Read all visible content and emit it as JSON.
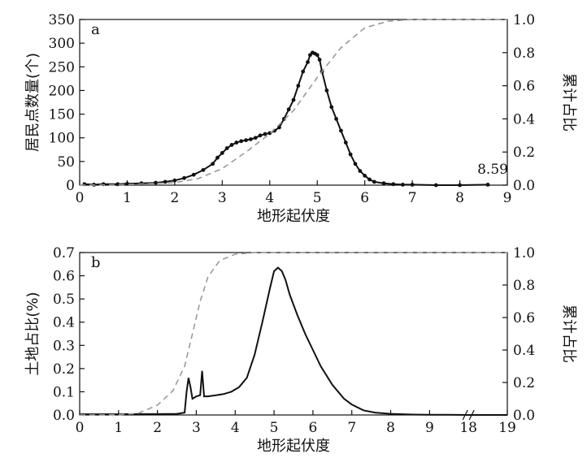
{
  "chart_data": [
    {
      "type": "scatter",
      "panel_label": "a",
      "xlabel": "地形起伏度",
      "ylabel": "居民点数量(个)",
      "y2label": "累计占比",
      "xlim": [
        0,
        9
      ],
      "ylim": [
        0,
        350
      ],
      "y2lim": [
        0,
        1.0
      ],
      "x_ticks": [
        "0",
        "1",
        "2",
        "3",
        "4",
        "5",
        "6",
        "7",
        "8",
        "9"
      ],
      "y_ticks": [
        "0",
        "50",
        "100",
        "150",
        "200",
        "250",
        "300",
        "350"
      ],
      "y2_ticks": [
        "0.0",
        "0.2",
        "0.4",
        "0.6",
        "0.8",
        "1.0"
      ],
      "annotation": "8.59",
      "series": [
        {
          "style": "black dots with line",
          "axis": "left",
          "x": [
            0.1,
            0.3,
            0.5,
            0.8,
            1.0,
            1.3,
            1.6,
            1.8,
            2.0,
            2.2,
            2.4,
            2.6,
            2.8,
            2.9,
            3.0,
            3.1,
            3.2,
            3.3,
            3.4,
            3.5,
            3.6,
            3.7,
            3.8,
            3.9,
            4.0,
            4.1,
            4.2,
            4.3,
            4.4,
            4.5,
            4.6,
            4.7,
            4.8,
            4.85,
            4.9,
            4.95,
            5.0,
            5.05,
            5.1,
            5.2,
            5.3,
            5.4,
            5.5,
            5.6,
            5.7,
            5.8,
            5.9,
            6.0,
            6.1,
            6.2,
            6.4,
            6.6,
            6.8,
            7.0,
            7.5,
            8.0,
            8.59
          ],
          "y": [
            2,
            1,
            2,
            2,
            3,
            4,
            5,
            7,
            10,
            15,
            22,
            32,
            45,
            58,
            68,
            78,
            85,
            90,
            93,
            95,
            97,
            100,
            105,
            108,
            110,
            115,
            122,
            140,
            160,
            180,
            210,
            240,
            260,
            275,
            280,
            278,
            275,
            265,
            240,
            200,
            165,
            140,
            115,
            90,
            65,
            45,
            30,
            20,
            12,
            7,
            4,
            2,
            1,
            1,
            0,
            0,
            1
          ]
        },
        {
          "style": "dashed gray",
          "axis": "right",
          "x": [
            0,
            1,
            2,
            2.5,
            3,
            3.5,
            4,
            4.5,
            5,
            5.5,
            6,
            6.5,
            7,
            9
          ],
          "y": [
            0,
            0.003,
            0.015,
            0.04,
            0.1,
            0.2,
            0.31,
            0.45,
            0.65,
            0.83,
            0.95,
            0.99,
            1.0,
            1.0
          ]
        }
      ]
    },
    {
      "type": "line",
      "panel_label": "b",
      "xlabel": "地形起伏度",
      "ylabel": "土地占比(%)",
      "y2label": "累计占比",
      "xlim": [
        0,
        19
      ],
      "x_break": [
        10,
        18
      ],
      "ylim": [
        0,
        0.7
      ],
      "y2lim": [
        0,
        1.0
      ],
      "x_ticks": [
        "0",
        "1",
        "2",
        "3",
        "4",
        "5",
        "6",
        "7",
        "8",
        "9",
        "18",
        "19"
      ],
      "y_ticks": [
        "0.0",
        "0.1",
        "0.2",
        "0.3",
        "0.4",
        "0.5",
        "0.6",
        "0.7"
      ],
      "y2_ticks": [
        "0.0",
        "0.2",
        "0.4",
        "0.6",
        "0.8",
        "1.0"
      ],
      "series": [
        {
          "style": "black line",
          "axis": "left",
          "x": [
            0,
            0.5,
            1,
            1.5,
            2,
            2.5,
            2.7,
            2.75,
            2.8,
            2.85,
            2.9,
            2.95,
            3.0,
            3.1,
            3.15,
            3.2,
            3.3,
            3.5,
            3.7,
            3.9,
            4.1,
            4.3,
            4.5,
            4.7,
            4.9,
            5.0,
            5.1,
            5.2,
            5.3,
            5.4,
            5.6,
            5.8,
            6.0,
            6.2,
            6.5,
            6.8,
            7.0,
            7.3,
            7.6,
            8.0,
            8.5,
            9.0,
            9.5,
            10.0,
            18.0,
            19.0
          ],
          "y": [
            0.003,
            0.003,
            0.003,
            0.004,
            0.004,
            0.005,
            0.01,
            0.1,
            0.16,
            0.12,
            0.07,
            0.075,
            0.08,
            0.085,
            0.19,
            0.08,
            0.08,
            0.085,
            0.09,
            0.1,
            0.12,
            0.16,
            0.26,
            0.4,
            0.55,
            0.62,
            0.635,
            0.62,
            0.58,
            0.52,
            0.43,
            0.35,
            0.28,
            0.21,
            0.13,
            0.07,
            0.045,
            0.02,
            0.01,
            0.005,
            0.002,
            0.001,
            0.001,
            0.0,
            0.0,
            0.0
          ]
        },
        {
          "style": "dashed gray",
          "axis": "right",
          "x": [
            0,
            1,
            1.5,
            2,
            2.4,
            2.7,
            2.9,
            3.1,
            3.3,
            3.6,
            4.0,
            4.5,
            5.0,
            10.0,
            18.0,
            19.0
          ],
          "y": [
            0,
            0.001,
            0.01,
            0.06,
            0.15,
            0.3,
            0.5,
            0.7,
            0.85,
            0.95,
            0.99,
            1.0,
            1.0,
            1.0,
            1.0,
            1.0
          ]
        }
      ]
    }
  ]
}
